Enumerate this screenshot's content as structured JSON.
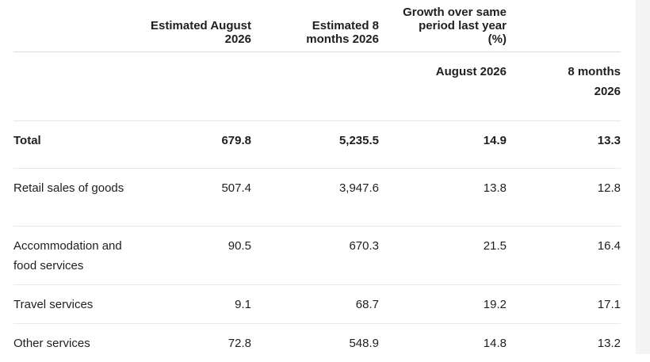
{
  "table": {
    "headers": {
      "col1": "Estimated August 2026",
      "col2": "Estimated 8 months 2026",
      "col3_group": "Growth over same period last year (%)",
      "sub_col3": "August 2026",
      "sub_col4": "8 months 2026"
    },
    "rows": [
      {
        "label": "Total",
        "aug": "679.8",
        "months8": "5,235.5",
        "growth_aug": "14.9",
        "growth_8m": "13.3"
      },
      {
        "label": "Retail sales of goods",
        "aug": "507.4",
        "months8": "3,947.6",
        "growth_aug": "13.8",
        "growth_8m": "12.8"
      },
      {
        "label": "Accommodation and food services",
        "aug": "90.5",
        "months8": "670.3",
        "growth_aug": "21.5",
        "growth_8m": "16.4"
      },
      {
        "label": "Travel services",
        "aug": "9.1",
        "months8": "68.7",
        "growth_aug": "19.2",
        "growth_8m": "17.1"
      },
      {
        "label": "Other services",
        "aug": "72.8",
        "months8": "548.9",
        "growth_aug": "14.8",
        "growth_8m": "13.2"
      }
    ]
  }
}
